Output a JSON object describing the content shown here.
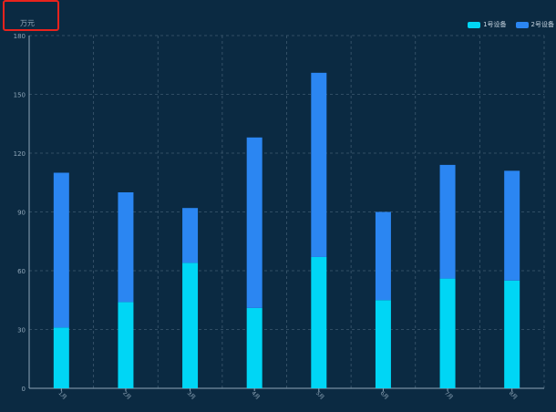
{
  "unit_label": "万元",
  "colors": {
    "background": "#0b2a42",
    "series1": "#00d6f5",
    "series2": "#2b86f2",
    "axis": "#8fa6b8",
    "grid": "#3e5a70",
    "highlight": "#e8231d"
  },
  "chart_data": {
    "type": "bar",
    "stacked": true,
    "ylabel": "万元",
    "ylim": [
      0,
      180
    ],
    "yticks": [
      0,
      30,
      60,
      90,
      120,
      150,
      180
    ],
    "categories": [
      "1月",
      "2月",
      "3月",
      "4月",
      "5月",
      "6月",
      "7月",
      "8月"
    ],
    "series": [
      {
        "name": "1号设备",
        "values": [
          31,
          44,
          64,
          41,
          67,
          45,
          56,
          55
        ]
      },
      {
        "name": "2号设备",
        "values": [
          79,
          56,
          28,
          87,
          94,
          45,
          58,
          56
        ]
      }
    ],
    "grid": true,
    "legend": "top-right"
  }
}
